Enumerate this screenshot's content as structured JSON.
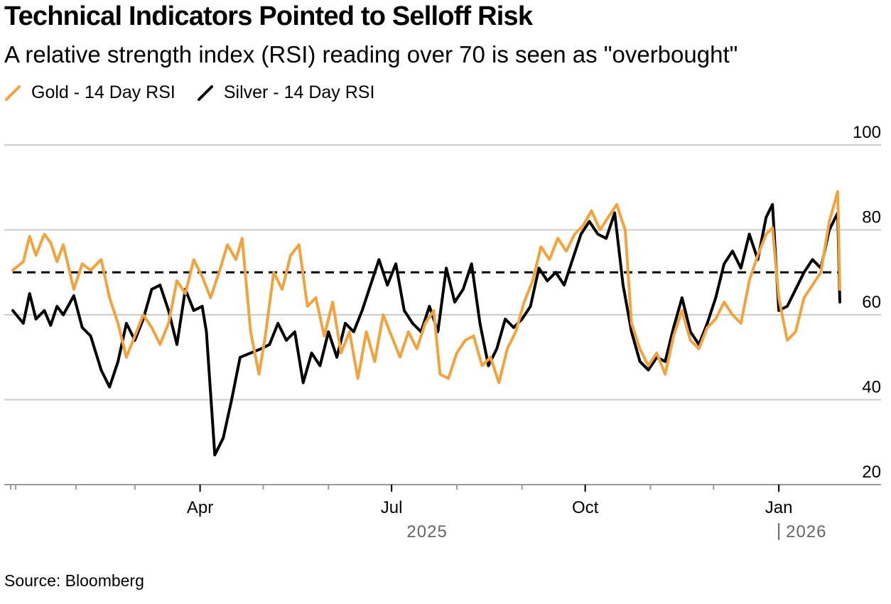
{
  "header": {
    "title": "Technical Indicators Pointed to Selloff Risk",
    "subtitle": "A relative strength index (RSI) reading over 70 is seen as \"overbought\""
  },
  "source": "Source: Bloomberg",
  "colors": {
    "gold": "#f0a33f",
    "silver": "#000000",
    "grid": "#cccccc",
    "reference": "#000000"
  },
  "chart_data": {
    "type": "line",
    "title": "Technical Indicators Pointed to Selloff Risk",
    "subtitle": "A relative strength index (RSI) reading over 70 is seen as \"overbought\"",
    "xlabel": "",
    "ylabel": "",
    "ylim": [
      20,
      100
    ],
    "yticks": [
      "20",
      "40",
      "60",
      "80",
      "100"
    ],
    "xrange": [
      "2025-01-02",
      "2026-01-30"
    ],
    "month_ticks": [
      "2025-01-01",
      "2025-02-01",
      "2025-03-01",
      "2025-04-01",
      "2025-05-01",
      "2025-06-01",
      "2025-07-01",
      "2025-08-01",
      "2025-09-01",
      "2025-10-01",
      "2025-11-01",
      "2025-12-01",
      "2026-01-01"
    ],
    "xtick_labels": [
      {
        "date": "2025-04-01",
        "label": "Apr"
      },
      {
        "date": "2025-07-01",
        "label": "Jul"
      },
      {
        "date": "2025-10-01",
        "label": "Oct"
      },
      {
        "date": "2026-01-01",
        "label": "Jan"
      }
    ],
    "year_labels": [
      {
        "label": "2025",
        "anchor_date": "2025-07-01"
      },
      {
        "label": "2026",
        "anchor_date": "2026-01-01"
      }
    ],
    "reference_line": {
      "value": 70,
      "style": "dashed"
    },
    "grid": true,
    "legend_position": "top-left",
    "series": [
      {
        "name": "Gold - 14 Day RSI",
        "color": "#f0a33f",
        "points": [
          [
            "2025-01-02",
            70.5
          ],
          [
            "2025-01-07",
            72.5
          ],
          [
            "2025-01-10",
            78.5
          ],
          [
            "2025-01-13",
            74
          ],
          [
            "2025-01-17",
            79
          ],
          [
            "2025-01-20",
            77
          ],
          [
            "2025-01-23",
            72.5
          ],
          [
            "2025-01-26",
            76.5
          ],
          [
            "2025-01-31",
            66
          ],
          [
            "2025-02-04",
            72
          ],
          [
            "2025-02-08",
            70.5
          ],
          [
            "2025-02-13",
            73
          ],
          [
            "2025-02-17",
            64
          ],
          [
            "2025-02-21",
            58
          ],
          [
            "2025-02-25",
            50
          ],
          [
            "2025-03-01",
            55
          ],
          [
            "2025-03-05",
            60
          ],
          [
            "2025-03-09",
            57
          ],
          [
            "2025-03-13",
            53
          ],
          [
            "2025-03-17",
            58
          ],
          [
            "2025-03-21",
            68
          ],
          [
            "2025-03-25",
            65
          ],
          [
            "2025-03-29",
            73
          ],
          [
            "2025-04-02",
            69
          ],
          [
            "2025-04-06",
            64
          ],
          [
            "2025-04-10",
            70
          ],
          [
            "2025-04-14",
            76.5
          ],
          [
            "2025-04-18",
            73
          ],
          [
            "2025-04-21",
            78
          ],
          [
            "2025-04-25",
            56
          ],
          [
            "2025-04-29",
            46
          ],
          [
            "2025-05-02",
            55
          ],
          [
            "2025-05-06",
            70
          ],
          [
            "2025-05-10",
            66
          ],
          [
            "2025-05-14",
            74
          ],
          [
            "2025-05-18",
            76.5
          ],
          [
            "2025-05-22",
            62
          ],
          [
            "2025-05-26",
            64
          ],
          [
            "2025-05-30",
            55
          ],
          [
            "2025-06-03",
            63
          ],
          [
            "2025-06-07",
            51
          ],
          [
            "2025-06-11",
            56
          ],
          [
            "2025-06-15",
            45
          ],
          [
            "2025-06-19",
            56
          ],
          [
            "2025-06-23",
            49
          ],
          [
            "2025-06-27",
            60
          ],
          [
            "2025-07-01",
            55
          ],
          [
            "2025-07-05",
            50
          ],
          [
            "2025-07-09",
            56
          ],
          [
            "2025-07-13",
            52
          ],
          [
            "2025-07-17",
            58
          ],
          [
            "2025-07-21",
            61
          ],
          [
            "2025-07-24",
            46
          ],
          [
            "2025-07-28",
            45
          ],
          [
            "2025-08-01",
            51
          ],
          [
            "2025-08-05",
            54
          ],
          [
            "2025-08-09",
            55
          ],
          [
            "2025-08-13",
            48
          ],
          [
            "2025-08-17",
            50
          ],
          [
            "2025-08-21",
            44
          ],
          [
            "2025-08-25",
            52
          ],
          [
            "2025-08-29",
            56
          ],
          [
            "2025-09-02",
            63
          ],
          [
            "2025-09-06",
            68
          ],
          [
            "2025-09-10",
            76
          ],
          [
            "2025-09-14",
            73
          ],
          [
            "2025-09-18",
            78
          ],
          [
            "2025-09-22",
            75
          ],
          [
            "2025-09-26",
            79
          ],
          [
            "2025-09-30",
            81
          ],
          [
            "2025-10-04",
            84.5
          ],
          [
            "2025-10-08",
            80
          ],
          [
            "2025-10-12",
            83
          ],
          [
            "2025-10-16",
            86
          ],
          [
            "2025-10-20",
            80
          ],
          [
            "2025-10-23",
            58
          ],
          [
            "2025-10-27",
            52
          ],
          [
            "2025-10-31",
            48
          ],
          [
            "2025-11-04",
            51
          ],
          [
            "2025-11-08",
            46
          ],
          [
            "2025-11-12",
            55
          ],
          [
            "2025-11-16",
            61
          ],
          [
            "2025-11-20",
            54
          ],
          [
            "2025-11-24",
            52
          ],
          [
            "2025-11-28",
            57
          ],
          [
            "2025-12-02",
            59
          ],
          [
            "2025-12-06",
            63
          ],
          [
            "2025-12-10",
            60
          ],
          [
            "2025-12-14",
            58
          ],
          [
            "2025-12-18",
            68
          ],
          [
            "2025-12-22",
            74
          ],
          [
            "2025-12-26",
            79
          ],
          [
            "2025-12-29",
            80.5
          ],
          [
            "2026-01-01",
            64
          ],
          [
            "2026-01-05",
            54
          ],
          [
            "2026-01-09",
            56
          ],
          [
            "2026-01-13",
            64
          ],
          [
            "2026-01-17",
            67
          ],
          [
            "2026-01-21",
            70
          ],
          [
            "2026-01-25",
            82
          ],
          [
            "2026-01-29",
            89
          ],
          [
            "2026-01-30",
            66
          ]
        ]
      },
      {
        "name": "Silver - 14 Day RSI",
        "color": "#000000",
        "points": [
          [
            "2025-01-02",
            61
          ],
          [
            "2025-01-07",
            58
          ],
          [
            "2025-01-10",
            65
          ],
          [
            "2025-01-13",
            59
          ],
          [
            "2025-01-17",
            61
          ],
          [
            "2025-01-20",
            57.5
          ],
          [
            "2025-01-23",
            62
          ],
          [
            "2025-01-26",
            60
          ],
          [
            "2025-01-31",
            64.5
          ],
          [
            "2025-02-04",
            57
          ],
          [
            "2025-02-08",
            55
          ],
          [
            "2025-02-13",
            47
          ],
          [
            "2025-02-17",
            43
          ],
          [
            "2025-02-21",
            49
          ],
          [
            "2025-02-25",
            58
          ],
          [
            "2025-03-01",
            54
          ],
          [
            "2025-03-05",
            59
          ],
          [
            "2025-03-09",
            66
          ],
          [
            "2025-03-13",
            67
          ],
          [
            "2025-03-17",
            61
          ],
          [
            "2025-03-21",
            53
          ],
          [
            "2025-03-25",
            66
          ],
          [
            "2025-03-29",
            61
          ],
          [
            "2025-04-02",
            62
          ],
          [
            "2025-04-04",
            56
          ],
          [
            "2025-04-08",
            27
          ],
          [
            "2025-04-12",
            31
          ],
          [
            "2025-04-16",
            40
          ],
          [
            "2025-04-20",
            50
          ],
          [
            "2025-04-25",
            51
          ],
          [
            "2025-04-30",
            52
          ],
          [
            "2025-05-04",
            53
          ],
          [
            "2025-05-08",
            58
          ],
          [
            "2025-05-12",
            54
          ],
          [
            "2025-05-16",
            56
          ],
          [
            "2025-05-20",
            44
          ],
          [
            "2025-05-24",
            51
          ],
          [
            "2025-05-28",
            48
          ],
          [
            "2025-06-01",
            56
          ],
          [
            "2025-06-05",
            50
          ],
          [
            "2025-06-09",
            58
          ],
          [
            "2025-06-13",
            56
          ],
          [
            "2025-06-17",
            61
          ],
          [
            "2025-06-21",
            67
          ],
          [
            "2025-06-25",
            73
          ],
          [
            "2025-06-29",
            67
          ],
          [
            "2025-07-03",
            72
          ],
          [
            "2025-07-07",
            61
          ],
          [
            "2025-07-11",
            58
          ],
          [
            "2025-07-15",
            56
          ],
          [
            "2025-07-19",
            62
          ],
          [
            "2025-07-23",
            56
          ],
          [
            "2025-07-27",
            71
          ],
          [
            "2025-07-31",
            63
          ],
          [
            "2025-08-04",
            66
          ],
          [
            "2025-08-08",
            72
          ],
          [
            "2025-08-12",
            58
          ],
          [
            "2025-08-16",
            48
          ],
          [
            "2025-08-20",
            52
          ],
          [
            "2025-08-24",
            59
          ],
          [
            "2025-08-28",
            57
          ],
          [
            "2025-09-01",
            59
          ],
          [
            "2025-09-05",
            62
          ],
          [
            "2025-09-09",
            71
          ],
          [
            "2025-09-13",
            68
          ],
          [
            "2025-09-17",
            70
          ],
          [
            "2025-09-21",
            67
          ],
          [
            "2025-09-25",
            73
          ],
          [
            "2025-09-29",
            79
          ],
          [
            "2025-10-03",
            82
          ],
          [
            "2025-10-07",
            79
          ],
          [
            "2025-10-11",
            78
          ],
          [
            "2025-10-15",
            84
          ],
          [
            "2025-10-19",
            67
          ],
          [
            "2025-10-23",
            56
          ],
          [
            "2025-10-27",
            49
          ],
          [
            "2025-10-31",
            47
          ],
          [
            "2025-11-04",
            50
          ],
          [
            "2025-11-08",
            49
          ],
          [
            "2025-11-12",
            57
          ],
          [
            "2025-11-16",
            64
          ],
          [
            "2025-11-20",
            56
          ],
          [
            "2025-11-24",
            53
          ],
          [
            "2025-11-28",
            58
          ],
          [
            "2025-12-02",
            64
          ],
          [
            "2025-12-06",
            72
          ],
          [
            "2025-12-10",
            75
          ],
          [
            "2025-12-14",
            71
          ],
          [
            "2025-12-18",
            79
          ],
          [
            "2025-12-22",
            73
          ],
          [
            "2025-12-26",
            83
          ],
          [
            "2025-12-29",
            86
          ],
          [
            "2026-01-01",
            61
          ],
          [
            "2026-01-05",
            62
          ],
          [
            "2026-01-09",
            66
          ],
          [
            "2026-01-13",
            70
          ],
          [
            "2026-01-17",
            73
          ],
          [
            "2026-01-21",
            71
          ],
          [
            "2026-01-25",
            80
          ],
          [
            "2026-01-29",
            84
          ],
          [
            "2026-01-30",
            63
          ]
        ]
      }
    ]
  }
}
